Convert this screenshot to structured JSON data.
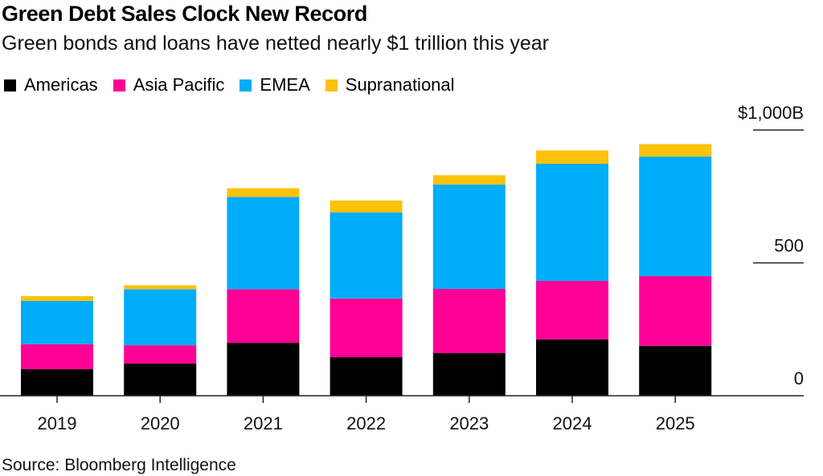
{
  "header": {
    "title": "Green Debt Sales Clock New Record",
    "subtitle": "Green bonds and loans have netted nearly $1 trillion this year"
  },
  "footer": {
    "source": "Source: Bloomberg Intelligence"
  },
  "chart_data": {
    "type": "bar",
    "stacked": true,
    "title": "Green Debt Sales Clock New Record",
    "subtitle": "Green bonds and loans have netted nearly $1 trillion this year",
    "xlabel": "",
    "ylabel": "",
    "categories": [
      "2019",
      "2020",
      "2021",
      "2022",
      "2023",
      "2024",
      "2025"
    ],
    "series": [
      {
        "name": "Americas",
        "color": "#000000",
        "values": [
          100,
          121,
          199,
          145,
          160,
          212,
          188
        ]
      },
      {
        "name": "Asia Pacific",
        "color": "#FF0095",
        "values": [
          94,
          69,
          202,
          221,
          242,
          220,
          262
        ]
      },
      {
        "name": "EMEA",
        "color": "#00ADF8",
        "values": [
          163,
          211,
          347,
          324,
          393,
          441,
          450
        ]
      },
      {
        "name": "Supranational",
        "color": "#FEC10C",
        "values": [
          18,
          15,
          33,
          45,
          35,
          50,
          47
        ]
      }
    ],
    "ylim": [
      0,
      1000
    ],
    "yticks": [
      {
        "value": 0,
        "label": "0"
      },
      {
        "value": 500,
        "label": "500"
      },
      {
        "value": 1000,
        "label": "$1,000B"
      }
    ],
    "y_axis_side": "right",
    "grid": false,
    "legend_position": "top-left",
    "source": "Source: Bloomberg Intelligence"
  }
}
